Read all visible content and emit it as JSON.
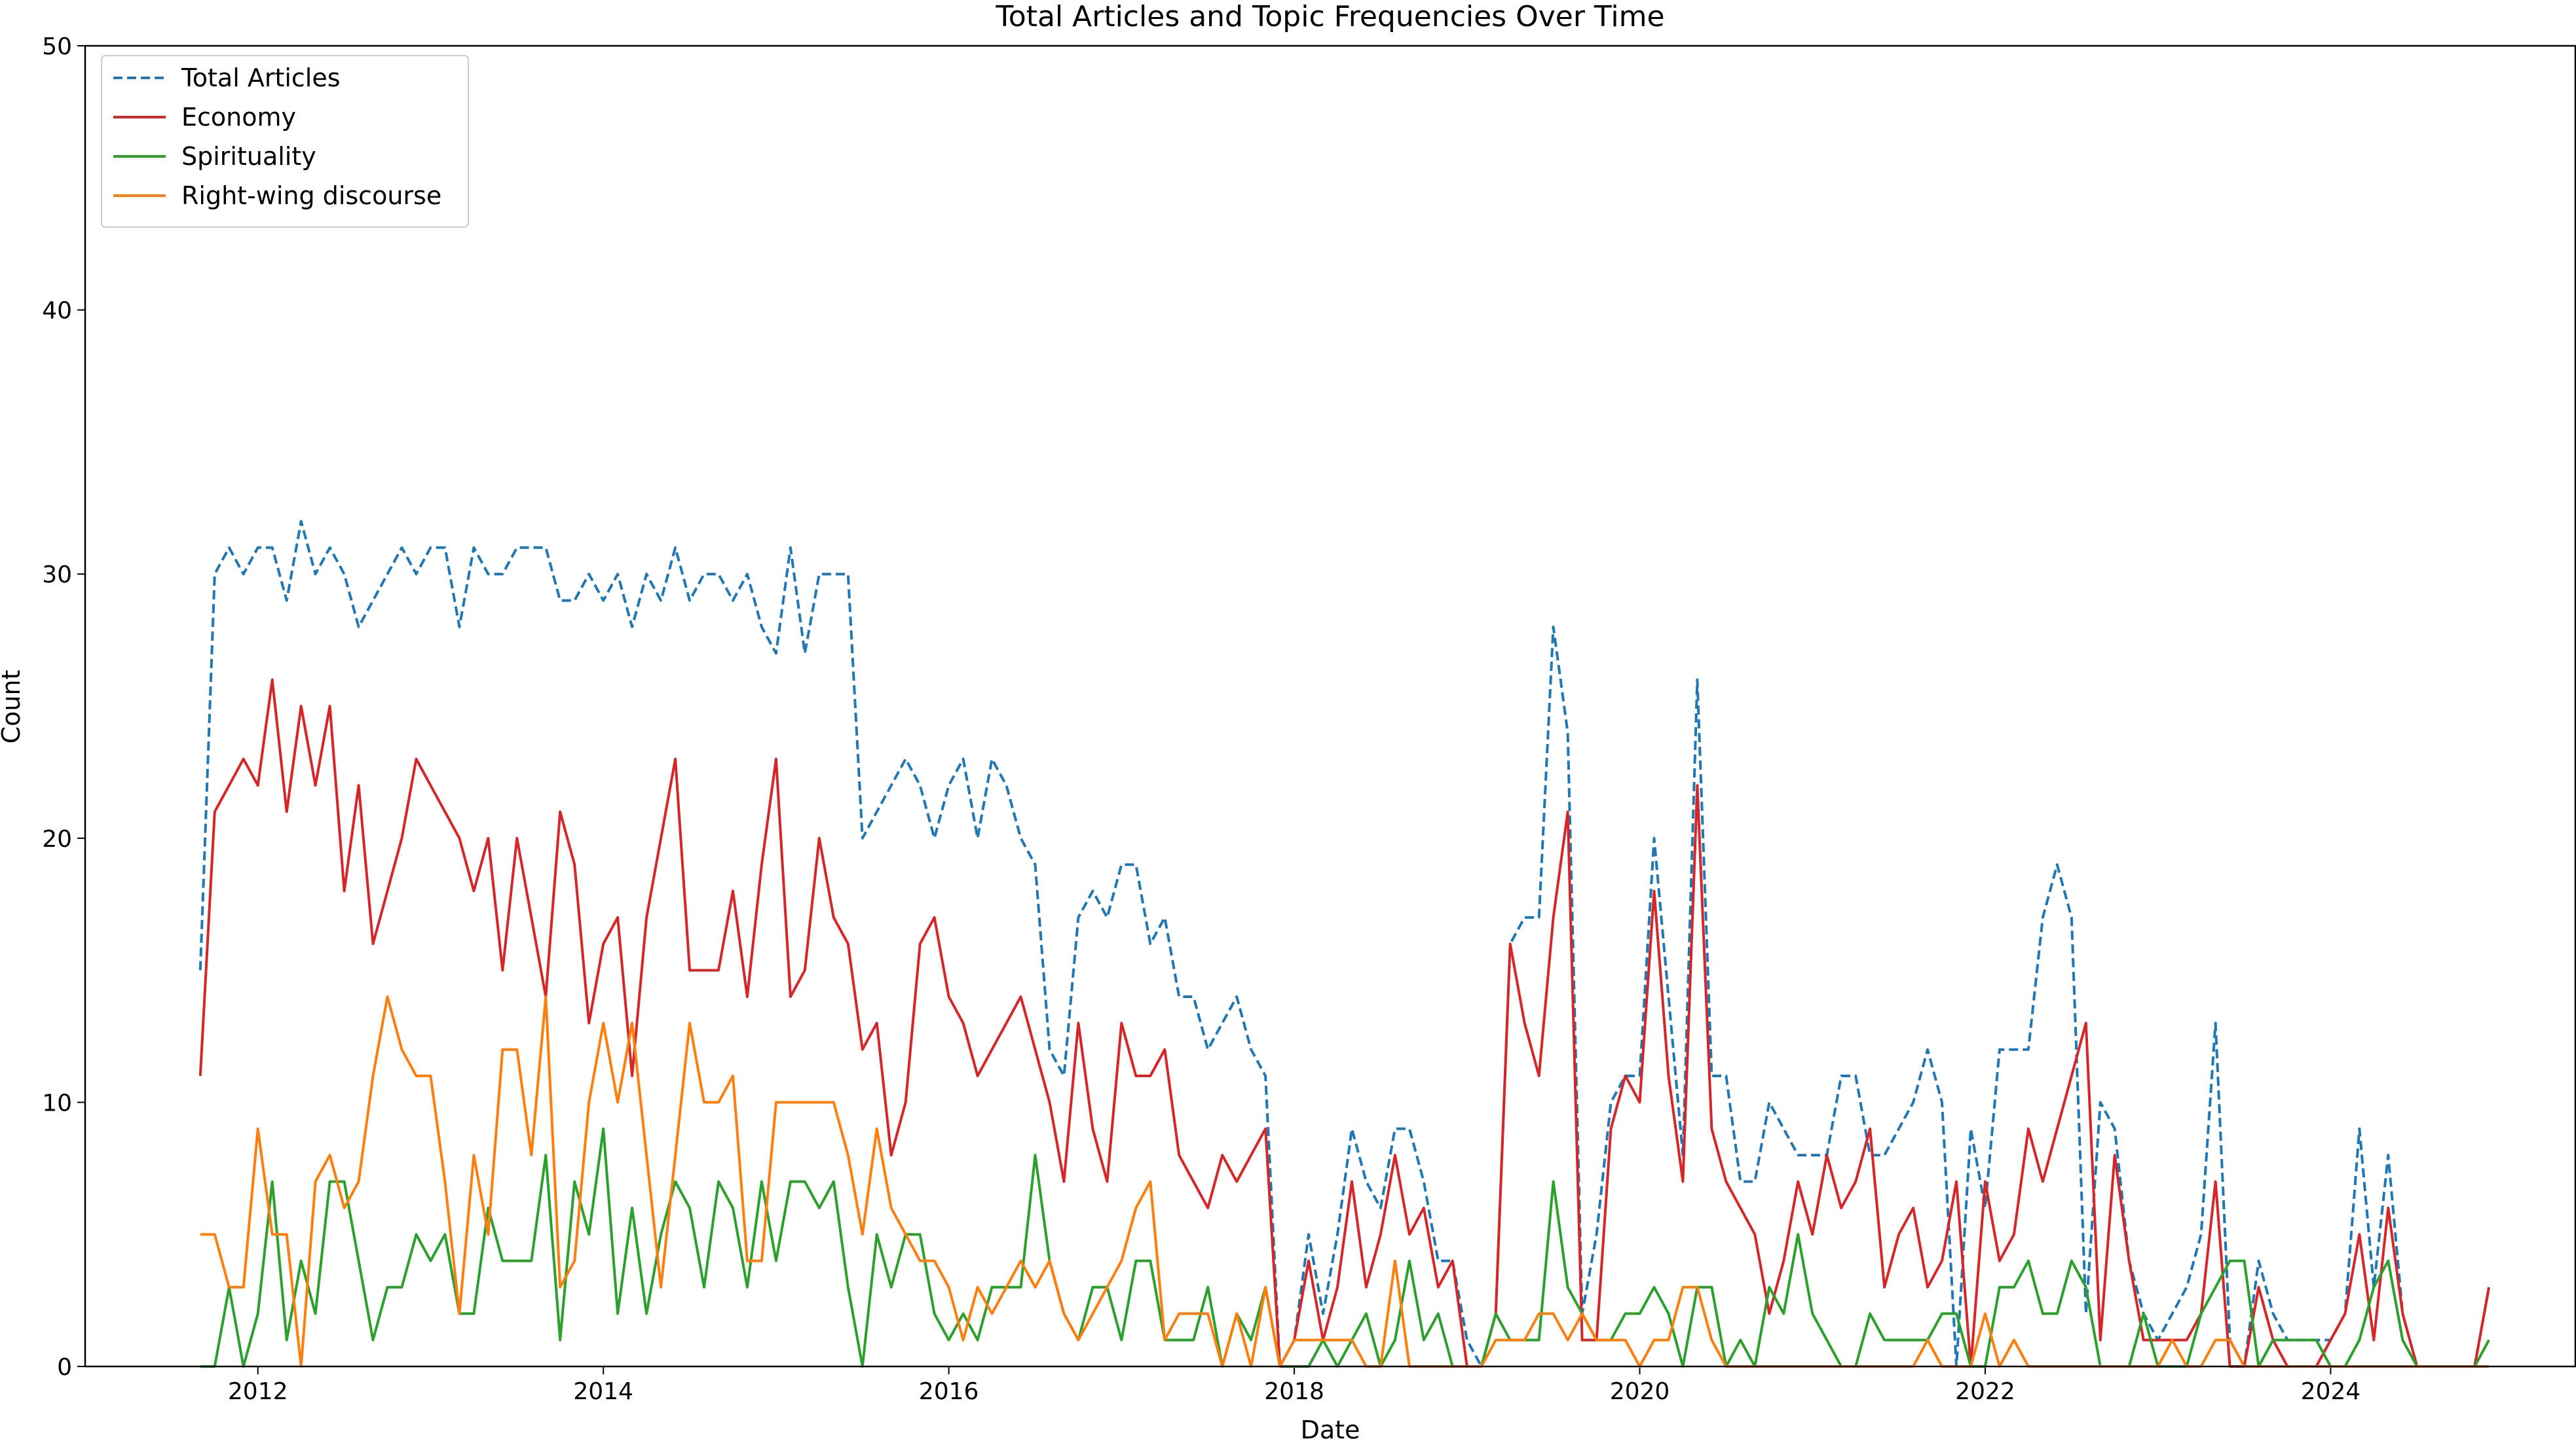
{
  "chart_data": {
    "type": "line",
    "title": "Total Articles and Topic Frequencies Over Time",
    "xlabel": "Date",
    "ylabel": "Count",
    "xlim": [
      "2011-01",
      "2025-06"
    ],
    "ylim": [
      0,
      50
    ],
    "x_ticks": [
      "2012",
      "2014",
      "2016",
      "2018",
      "2020",
      "2022",
      "2024"
    ],
    "y_ticks": [
      "0",
      "10",
      "20",
      "30",
      "40",
      "50"
    ],
    "grid": false,
    "legend_position": "upper-left",
    "x": [
      "2011-09",
      "2011-10",
      "2011-11",
      "2011-12",
      "2012-01",
      "2012-02",
      "2012-03",
      "2012-04",
      "2012-05",
      "2012-06",
      "2012-07",
      "2012-08",
      "2012-09",
      "2012-10",
      "2012-11",
      "2012-12",
      "2013-01",
      "2013-02",
      "2013-03",
      "2013-04",
      "2013-05",
      "2013-06",
      "2013-07",
      "2013-08",
      "2013-09",
      "2013-10",
      "2013-11",
      "2013-12",
      "2014-01",
      "2014-02",
      "2014-03",
      "2014-04",
      "2014-05",
      "2014-06",
      "2014-07",
      "2014-08",
      "2014-09",
      "2014-10",
      "2014-11",
      "2014-12",
      "2015-01",
      "2015-02",
      "2015-03",
      "2015-04",
      "2015-05",
      "2015-06",
      "2015-07",
      "2015-08",
      "2015-09",
      "2015-10",
      "2015-11",
      "2015-12",
      "2016-01",
      "2016-02",
      "2016-03",
      "2016-04",
      "2016-05",
      "2016-06",
      "2016-07",
      "2016-08",
      "2016-09",
      "2016-10",
      "2016-11",
      "2016-12",
      "2017-01",
      "2017-02",
      "2017-03",
      "2017-04",
      "2017-05",
      "2017-06",
      "2017-07",
      "2017-08",
      "2017-09",
      "2017-10",
      "2017-11",
      "2017-12",
      "2018-01",
      "2018-02",
      "2018-03",
      "2018-04",
      "2018-05",
      "2018-06",
      "2018-07",
      "2018-08",
      "2018-09",
      "2018-10",
      "2018-11",
      "2018-12",
      "2019-01",
      "2019-02",
      "2019-03",
      "2019-04",
      "2019-05",
      "2019-06",
      "2019-07",
      "2019-08",
      "2019-09",
      "2019-10",
      "2019-11",
      "2019-12",
      "2020-01",
      "2020-02",
      "2020-03",
      "2020-04",
      "2020-05",
      "2020-06",
      "2020-07",
      "2020-08",
      "2020-09",
      "2020-10",
      "2020-11",
      "2020-12",
      "2021-01",
      "2021-02",
      "2021-03",
      "2021-04",
      "2021-05",
      "2021-06",
      "2021-07",
      "2021-08",
      "2021-09",
      "2021-10",
      "2021-11",
      "2021-12",
      "2022-01",
      "2022-02",
      "2022-03",
      "2022-04",
      "2022-05",
      "2022-06",
      "2022-07",
      "2022-08",
      "2022-09",
      "2022-10",
      "2022-11",
      "2022-12",
      "2023-01",
      "2023-02",
      "2023-03",
      "2023-04",
      "2023-05",
      "2023-06",
      "2023-07",
      "2023-08",
      "2023-09",
      "2023-10",
      "2023-11",
      "2023-12",
      "2024-01",
      "2024-02",
      "2024-03",
      "2024-04",
      "2024-05",
      "2024-06",
      "2024-07",
      "2024-08",
      "2024-09",
      "2024-10",
      "2024-11",
      "2024-12"
    ],
    "series": [
      {
        "name": "Total Articles",
        "style": "dashed",
        "color": "#1f77b4",
        "values": [
          15,
          30,
          31,
          30,
          31,
          31,
          29,
          32,
          30,
          31,
          30,
          28,
          29,
          30,
          31,
          30,
          31,
          31,
          28,
          31,
          30,
          30,
          31,
          31,
          31,
          29,
          29,
          30,
          29,
          30,
          28,
          30,
          29,
          31,
          29,
          30,
          30,
          29,
          30,
          28,
          27,
          31,
          27,
          30,
          30,
          30,
          20,
          21,
          22,
          23,
          22,
          20,
          22,
          23,
          20,
          23,
          22,
          20,
          19,
          12,
          11,
          17,
          18,
          17,
          19,
          19,
          16,
          17,
          14,
          14,
          12,
          13,
          14,
          12,
          11,
          0,
          1,
          5,
          2,
          5,
          9,
          7,
          6,
          9,
          9,
          7,
          4,
          4,
          1,
          0,
          2,
          16,
          17,
          17,
          28,
          24,
          2,
          5,
          10,
          11,
          11,
          20,
          14,
          8,
          26,
          11,
          11,
          7,
          7,
          10,
          9,
          8,
          8,
          8,
          11,
          11,
          8,
          8,
          9,
          10,
          12,
          10,
          0,
          9,
          6,
          12,
          12,
          12,
          17,
          19,
          17,
          2,
          10,
          9,
          4,
          2,
          1,
          2,
          3,
          5,
          13,
          1,
          0,
          4,
          2,
          1,
          1,
          1,
          1,
          2,
          9,
          3,
          8,
          2,
          0,
          0,
          0,
          0,
          0,
          3
        ]
      },
      {
        "name": "Economy",
        "style": "solid",
        "color": "#d62728",
        "values": [
          11,
          21,
          22,
          23,
          22,
          26,
          21,
          25,
          22,
          25,
          18,
          22,
          16,
          18,
          20,
          23,
          22,
          21,
          20,
          18,
          20,
          15,
          20,
          17,
          14,
          21,
          19,
          13,
          16,
          17,
          11,
          17,
          20,
          23,
          15,
          15,
          15,
          18,
          14,
          19,
          23,
          14,
          15,
          20,
          17,
          16,
          12,
          13,
          8,
          10,
          16,
          17,
          14,
          13,
          11,
          12,
          13,
          14,
          12,
          10,
          7,
          13,
          9,
          7,
          13,
          11,
          11,
          12,
          8,
          7,
          6,
          8,
          7,
          8,
          9,
          0,
          1,
          4,
          1,
          3,
          7,
          3,
          5,
          8,
          5,
          6,
          3,
          4,
          0,
          0,
          2,
          16,
          13,
          11,
          17,
          21,
          1,
          1,
          9,
          11,
          10,
          18,
          11,
          7,
          22,
          9,
          7,
          6,
          5,
          2,
          4,
          7,
          5,
          8,
          6,
          7,
          9,
          3,
          5,
          6,
          3,
          4,
          7,
          0,
          7,
          4,
          5,
          9,
          7,
          9,
          11,
          13,
          1,
          8,
          4,
          1,
          1,
          1,
          1,
          2,
          7,
          0,
          0,
          3,
          1,
          0,
          0,
          0,
          1,
          2,
          5,
          1,
          6,
          2,
          0,
          0,
          0,
          0,
          0,
          3
        ]
      },
      {
        "name": "Spirituality",
        "style": "solid",
        "color": "#2ca02c",
        "values": [
          0,
          0,
          3,
          0,
          2,
          7,
          1,
          4,
          2,
          7,
          7,
          4,
          1,
          3,
          3,
          5,
          4,
          5,
          2,
          2,
          6,
          4,
          4,
          4,
          8,
          1,
          7,
          5,
          9,
          2,
          6,
          2,
          5,
          7,
          6,
          3,
          7,
          6,
          3,
          7,
          4,
          7,
          7,
          6,
          7,
          3,
          0,
          5,
          3,
          5,
          5,
          2,
          1,
          2,
          1,
          3,
          3,
          3,
          8,
          4,
          2,
          1,
          3,
          3,
          1,
          4,
          4,
          1,
          1,
          1,
          3,
          0,
          2,
          1,
          3,
          0,
          0,
          0,
          1,
          0,
          1,
          2,
          0,
          1,
          4,
          1,
          2,
          0,
          0,
          0,
          2,
          1,
          1,
          1,
          7,
          3,
          2,
          1,
          1,
          2,
          2,
          3,
          2,
          0,
          3,
          3,
          0,
          1,
          0,
          3,
          2,
          5,
          2,
          1,
          0,
          0,
          2,
          1,
          1,
          1,
          1,
          2,
          2,
          0,
          0,
          3,
          3,
          4,
          2,
          2,
          4,
          3,
          0,
          0,
          0,
          2,
          0,
          0,
          0,
          2,
          3,
          4,
          4,
          0,
          1,
          1,
          1,
          1,
          0,
          0,
          1,
          3,
          4,
          1,
          0,
          0,
          0,
          0,
          0,
          1
        ]
      },
      {
        "name": "Right-wing discourse",
        "style": "solid",
        "color": "#ff7f0e",
        "values": [
          5,
          5,
          3,
          3,
          9,
          5,
          5,
          0,
          7,
          8,
          6,
          7,
          11,
          14,
          12,
          11,
          11,
          7,
          2,
          8,
          5,
          12,
          12,
          8,
          14,
          3,
          4,
          10,
          13,
          10,
          13,
          8,
          3,
          8,
          13,
          10,
          10,
          11,
          4,
          4,
          10,
          10,
          10,
          10,
          10,
          8,
          5,
          9,
          6,
          5,
          4,
          4,
          3,
          1,
          3,
          2,
          3,
          4,
          3,
          4,
          2,
          1,
          2,
          3,
          4,
          6,
          7,
          1,
          2,
          2,
          2,
          0,
          2,
          0,
          3,
          0,
          1,
          1,
          1,
          1,
          1,
          0,
          0,
          4,
          0,
          0,
          0,
          0,
          0,
          0,
          1,
          1,
          1,
          2,
          2,
          1,
          2,
          1,
          1,
          1,
          0,
          1,
          1,
          3,
          3,
          1,
          0,
          0,
          0,
          0,
          0,
          0,
          0,
          0,
          0,
          0,
          0,
          0,
          0,
          0,
          1,
          0,
          0,
          0,
          2,
          0,
          1,
          0,
          0,
          0,
          0,
          0,
          0,
          0,
          0,
          0,
          0,
          1,
          0,
          0,
          1,
          1,
          0,
          0,
          0,
          0,
          0,
          0,
          0,
          0,
          0,
          0,
          0,
          0,
          0,
          0,
          0,
          0,
          0,
          0
        ]
      }
    ]
  }
}
